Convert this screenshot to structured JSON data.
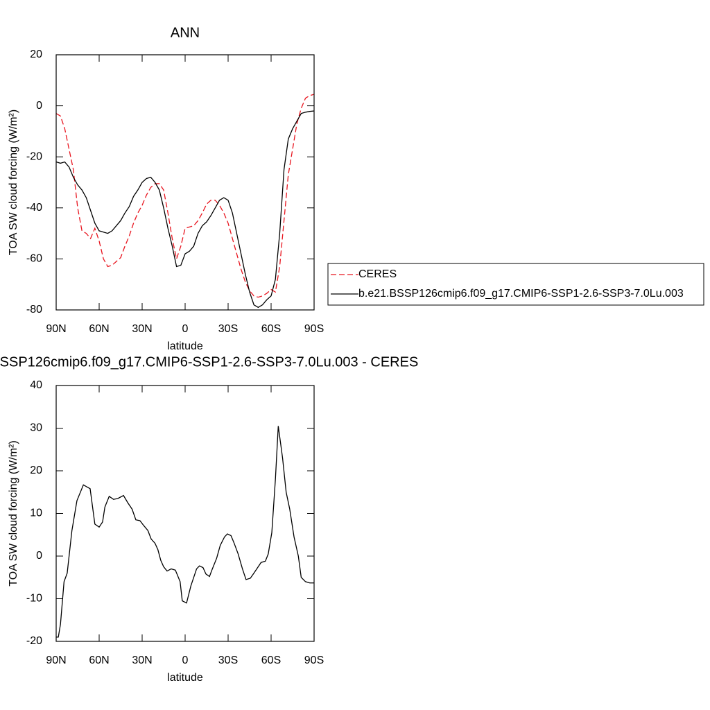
{
  "chart_data": [
    {
      "type": "line",
      "title": "ANN",
      "xlabel": "latitude",
      "ylabel": "TOA SW cloud forcing (W/m²)",
      "xlim": [
        90,
        -90
      ],
      "xticks": [
        {
          "value": 90,
          "label": "90N"
        },
        {
          "value": 60,
          "label": "60N"
        },
        {
          "value": 30,
          "label": "30N"
        },
        0,
        {
          "value": -30,
          "label": "30S"
        },
        {
          "value": -60,
          "label": "60S"
        },
        {
          "value": -90,
          "label": "90S"
        }
      ],
      "ylim": [
        -80,
        20
      ],
      "yticks": [
        -80,
        -60,
        -40,
        -20,
        0,
        20
      ],
      "legend": "right",
      "x": [
        90,
        87,
        84,
        81,
        78,
        75,
        72,
        69,
        66,
        63,
        60,
        57,
        54,
        51,
        48,
        45,
        42,
        39,
        36,
        33,
        30,
        27,
        24,
        21,
        18,
        15,
        12,
        9,
        6,
        3,
        0,
        -3,
        -6,
        -9,
        -12,
        -15,
        -18,
        -21,
        -24,
        -27,
        -30,
        -33,
        -36,
        -39,
        -42,
        -45,
        -48,
        -51,
        -54,
        -57,
        -60,
        -63,
        -66,
        -69,
        -72,
        -75,
        -78,
        -81,
        -84,
        -87,
        -90
      ],
      "series": [
        {
          "name": "CERES",
          "color": "#e8141e",
          "dash": true,
          "values": [
            -3,
            -4,
            -9,
            -17,
            -25,
            -40,
            -49,
            -50,
            -52,
            -48,
            -53,
            -60,
            -63,
            -62.5,
            -61,
            -59.5,
            -55,
            -51,
            -46,
            -42,
            -39,
            -35,
            -32,
            -30.5,
            -30.5,
            -33,
            -42,
            -52,
            -60,
            -55,
            -48,
            -47.5,
            -47,
            -45,
            -42,
            -38.5,
            -37,
            -37,
            -39,
            -42,
            -46,
            -52,
            -58,
            -64,
            -69,
            -72.5,
            -74.5,
            -75,
            -74.5,
            -73.5,
            -72,
            -73,
            -63,
            -45,
            -27,
            -17,
            -7,
            -1,
            3,
            4,
            4.5
          ]
        },
        {
          "name": "b.e21.BSSP126cmip6.f09_g17.CMIP6-SSP1-2.6-SSP3-7.0Lu.003",
          "color": "#000000",
          "dash": false,
          "values": [
            -22,
            -22.5,
            -22,
            -24,
            -28,
            -31,
            -33,
            -36,
            -41,
            -46,
            -49,
            -49.5,
            -50,
            -49,
            -47,
            -45,
            -42,
            -39.5,
            -35.5,
            -33,
            -30,
            -28.5,
            -28,
            -30,
            -33,
            -40,
            -48,
            -55,
            -63,
            -62.5,
            -58,
            -57,
            -55,
            -50,
            -47,
            -45.5,
            -43,
            -40,
            -37,
            -36,
            -37,
            -42,
            -50,
            -58,
            -66,
            -73,
            -78,
            -79,
            -78,
            -76,
            -74.5,
            -68,
            -50,
            -25,
            -13,
            -9,
            -6,
            -3,
            -2.5,
            -2.2,
            -2
          ]
        }
      ]
    },
    {
      "type": "line",
      "title": "b.e21.BSSP126cmip6.f09_g17.CMIP6-SSP1-2.6-SSP3-7.0Lu.003 - CERES",
      "xlabel": "latitude",
      "ylabel": "TOA SW cloud forcing (W/m²)",
      "xlim": [
        90,
        -90
      ],
      "xticks": [
        {
          "value": 90,
          "label": "90N"
        },
        {
          "value": 60,
          "label": "60N"
        },
        {
          "value": 30,
          "label": "30N"
        },
        0,
        {
          "value": -30,
          "label": "30S"
        },
        {
          "value": -60,
          "label": "60S"
        },
        {
          "value": -90,
          "label": "90S"
        }
      ],
      "ylim": [
        -20,
        40
      ],
      "yticks": [
        -20,
        -10,
        0,
        10,
        20,
        30,
        40
      ],
      "color": "#000000",
      "x": [
        90,
        88.5,
        87,
        84.5,
        82.3,
        79,
        75.5,
        71,
        66.3,
        63,
        60,
        57.6,
        56,
        53,
        50,
        47,
        43,
        40,
        37,
        34.4,
        31.5,
        29,
        26,
        23.7,
        21,
        19,
        17,
        15,
        12.6,
        9.7,
        6.8,
        3.5,
        2,
        -1,
        -4,
        -8,
        -10,
        -12.5,
        -14.5,
        -17,
        -19,
        -22,
        -24.5,
        -27.5,
        -29.5,
        -32,
        -34,
        -37,
        -40,
        -42.5,
        -45.5,
        -48,
        -51,
        -53,
        -56,
        -58,
        -60.5,
        -63,
        -65,
        -68,
        -70.5,
        -73,
        -76,
        -79,
        -81,
        -84,
        -87,
        -90
      ],
      "values": [
        -19,
        -19,
        -16,
        -6,
        -4,
        6,
        13,
        16.7,
        15.8,
        7.5,
        6.8,
        8,
        11.5,
        14,
        13.3,
        13.5,
        14.2,
        12.5,
        11,
        8.5,
        8.3,
        7.2,
        6,
        4,
        3,
        1.5,
        -1,
        -2.5,
        -3.5,
        -3,
        -3.3,
        -6,
        -10.5,
        -11,
        -7,
        -3,
        -2.3,
        -2.7,
        -4.2,
        -4.8,
        -3,
        -0.5,
        2.5,
        4.5,
        5.2,
        4.8,
        3.2,
        0.5,
        -3,
        -5.5,
        -5.2,
        -4,
        -2.5,
        -1.5,
        -1.2,
        0.5,
        5.5,
        18,
        30.5,
        23,
        15,
        11,
        4.5,
        0,
        -5,
        -6,
        -6.3,
        -6.3
      ]
    }
  ]
}
